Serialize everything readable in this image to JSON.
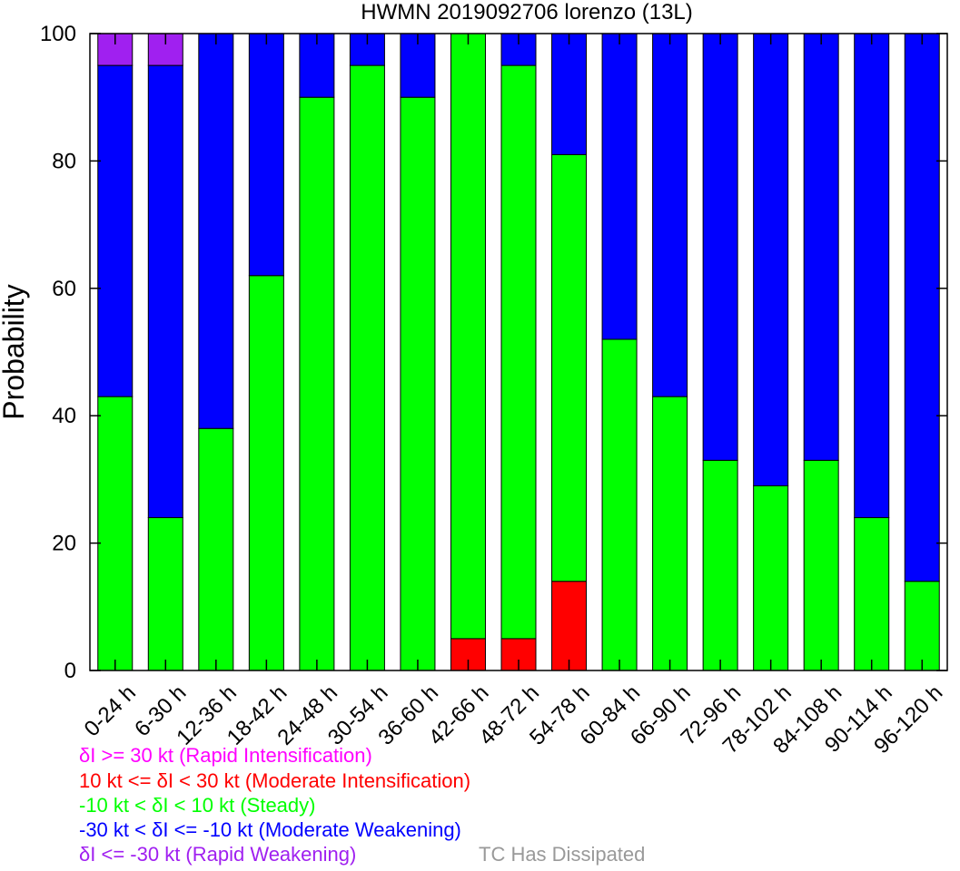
{
  "chart_data": {
    "type": "bar",
    "stacked": true,
    "title": "HWMN 2019092706 lorenzo (13L)",
    "ylabel": "Probability",
    "xlabel": "",
    "ylim": [
      0,
      100
    ],
    "yticks": [
      0,
      20,
      40,
      60,
      80,
      100
    ],
    "grid": false,
    "categories": [
      "0-24 h",
      "6-30 h",
      "12-36 h",
      "18-42 h",
      "24-48 h",
      "30-54 h",
      "36-60 h",
      "42-66 h",
      "48-72 h",
      "54-78 h",
      "60-84 h",
      "66-90 h",
      "72-96 h",
      "78-102 h",
      "84-108 h",
      "90-114 h",
      "96-120 h"
    ],
    "series": [
      {
        "name": "Rapid Weakening",
        "color": "#a020f0",
        "values": [
          5,
          5,
          0,
          0,
          0,
          0,
          0,
          0,
          0,
          0,
          0,
          0,
          0,
          0,
          0,
          0,
          0
        ]
      },
      {
        "name": "Moderate Weakening",
        "color": "#0000ff",
        "values": [
          52,
          71,
          62,
          38,
          10,
          5,
          10,
          0,
          5,
          19,
          48,
          57,
          67,
          71,
          67,
          76,
          86
        ]
      },
      {
        "name": "Steady",
        "color": "#00ff00",
        "values": [
          43,
          24,
          38,
          62,
          90,
          95,
          90,
          95,
          90,
          67,
          52,
          43,
          33,
          29,
          33,
          24,
          14
        ]
      },
      {
        "name": "Moderate Intensification",
        "color": "#ff0000",
        "values": [
          0,
          0,
          0,
          0,
          0,
          0,
          0,
          5,
          5,
          14,
          0,
          0,
          0,
          0,
          0,
          0,
          0
        ]
      },
      {
        "name": "Rapid Intensification",
        "color": "#ff00ff",
        "values": [
          0,
          0,
          0,
          0,
          0,
          0,
          0,
          0,
          0,
          0,
          0,
          0,
          0,
          0,
          0,
          0,
          0
        ]
      }
    ],
    "stack_order": [
      "Moderate Intensification",
      "Steady",
      "Moderate Weakening",
      "Rapid Weakening",
      "Rapid Intensification"
    ],
    "legend": [
      {
        "text": "δI >= 30 kt (Rapid Intensification)",
        "color": "#ff00ff"
      },
      {
        "text": "10 kt <= δI < 30 kt (Moderate Intensification)",
        "color": "#ff0000"
      },
      {
        "text": "-10 kt < δI < 10 kt (Steady)",
        "color": "#00ff00"
      },
      {
        "text": "-30 kt < δI <= -10 kt (Moderate Weakening)",
        "color": "#0000ff"
      },
      {
        "text": "δI <= -30 kt (Rapid Weakening)",
        "color": "#a020f0"
      },
      {
        "text": "TC Has Dissipated",
        "color": "#999999"
      }
    ]
  }
}
